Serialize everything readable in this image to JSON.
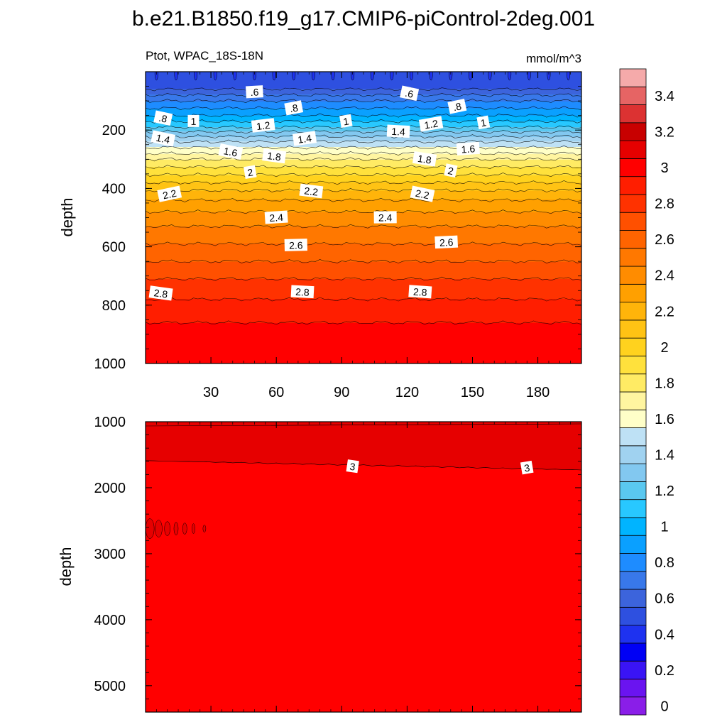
{
  "figure": {
    "title": "b.e21.B1850.f19_g17.CMIP6-piControl-2deg.001",
    "left_string": "Ptot, WPAC_18S-18N",
    "right_string": "mmol/m^3",
    "ylabel": "depth"
  },
  "chart_data": {
    "type": "heatmap",
    "variable": "Ptot",
    "region": "WPAC_18S-18N",
    "units": "mmol/m^3",
    "x_axis": {
      "range": [
        0,
        200
      ],
      "ticks": [
        30,
        60,
        90,
        120,
        150,
        180
      ],
      "tick_labels": [
        "30",
        "60",
        "90",
        "120",
        "150",
        "180"
      ]
    },
    "panels": [
      {
        "name": "upper",
        "ylabel": "depth",
        "ylim": [
          0,
          1000
        ],
        "y_inverted": true,
        "y_ticks": [
          200,
          400,
          600,
          800,
          1000
        ],
        "y_tick_labels": [
          "200",
          "400",
          "600",
          "800",
          "1000"
        ],
        "show_x_tick_labels": true,
        "profile_depth": [
          0,
          30,
          60,
          100,
          150,
          190,
          230,
          260,
          280,
          300,
          340,
          380,
          420,
          460,
          500,
          560,
          620,
          680,
          740,
          820,
          860,
          1000
        ],
        "profile_value": [
          0.5,
          0.55,
          0.6,
          0.8,
          1.0,
          1.2,
          1.45,
          1.6,
          1.7,
          1.8,
          1.95,
          2.1,
          2.25,
          2.35,
          2.45,
          2.55,
          2.65,
          2.75,
          2.85,
          2.95,
          3.0,
          3.05
        ],
        "contour_labels": [
          {
            "text": ".6",
            "x": 50,
            "depth": 70
          },
          {
            "text": ".6",
            "x": 121,
            "depth": 75
          },
          {
            "text": ".8",
            "x": 8,
            "depth": 160
          },
          {
            "text": ".8",
            "x": 68,
            "depth": 125
          },
          {
            "text": ".8",
            "x": 143,
            "depth": 120
          },
          {
            "text": "1",
            "x": 22,
            "depth": 170
          },
          {
            "text": "1",
            "x": 92,
            "depth": 170
          },
          {
            "text": "1",
            "x": 155,
            "depth": 175
          },
          {
            "text": "1.4",
            "x": 8,
            "depth": 230
          },
          {
            "text": "1.2",
            "x": 54,
            "depth": 185
          },
          {
            "text": "1.4",
            "x": 73,
            "depth": 230
          },
          {
            "text": "1.4",
            "x": 116,
            "depth": 205
          },
          {
            "text": "1.2",
            "x": 131,
            "depth": 180
          },
          {
            "text": "1.6",
            "x": 39,
            "depth": 275
          },
          {
            "text": "1.8",
            "x": 59,
            "depth": 290
          },
          {
            "text": "1.8",
            "x": 128,
            "depth": 300
          },
          {
            "text": "1.6",
            "x": 148,
            "depth": 265
          },
          {
            "text": "2",
            "x": 48,
            "depth": 345
          },
          {
            "text": "2",
            "x": 140,
            "depth": 340
          },
          {
            "text": "2.2",
            "x": 11,
            "depth": 420
          },
          {
            "text": "2.2",
            "x": 76,
            "depth": 410
          },
          {
            "text": "2.2",
            "x": 127,
            "depth": 420
          },
          {
            "text": "2.4",
            "x": 60,
            "depth": 500
          },
          {
            "text": "2.4",
            "x": 110,
            "depth": 500
          },
          {
            "text": "2.6",
            "x": 69,
            "depth": 595
          },
          {
            "text": "2.6",
            "x": 138,
            "depth": 585
          },
          {
            "text": "2.8",
            "x": 7,
            "depth": 760
          },
          {
            "text": "2.8",
            "x": 72,
            "depth": 755
          },
          {
            "text": "2.8",
            "x": 126,
            "depth": 755
          }
        ]
      },
      {
        "name": "lower",
        "ylabel": "depth",
        "ylim": [
          1000,
          5400
        ],
        "y_inverted": true,
        "y_ticks": [
          1000,
          2000,
          3000,
          4000,
          5000
        ],
        "y_tick_labels": [
          "1000",
          "2000",
          "3000",
          "4000",
          "5000"
        ],
        "show_x_tick_labels": false,
        "upper_band_value": 3.1,
        "deep_value": 3.05,
        "contour_3_depth_start": 1590,
        "contour_3_depth_end": 1730,
        "contour_labels": [
          {
            "text": "3",
            "x": 95,
            "depth": 1680
          },
          {
            "text": "3",
            "x": 175,
            "depth": 1700
          }
        ]
      }
    ],
    "colorbar": {
      "levels": [
        0,
        0.1,
        0.2,
        0.3,
        0.4,
        0.5,
        0.6,
        0.7,
        0.8,
        0.9,
        1.0,
        1.1,
        1.2,
        1.3,
        1.4,
        1.5,
        1.6,
        1.7,
        1.8,
        1.9,
        2.0,
        2.1,
        2.2,
        2.3,
        2.4,
        2.5,
        2.6,
        2.7,
        2.8,
        2.9,
        3.0,
        3.1,
        3.2,
        3.3,
        3.4,
        3.5
      ],
      "tick_labels": [
        "0",
        "0.2",
        "0.4",
        "0.6",
        "0.8",
        "1",
        "1.2",
        "1.4",
        "1.6",
        "1.8",
        "2",
        "2.2",
        "2.4",
        "2.6",
        "2.8",
        "3",
        "3.2",
        "3.4"
      ],
      "tick_values": [
        0,
        0.2,
        0.4,
        0.6,
        0.8,
        1.0,
        1.2,
        1.4,
        1.6,
        1.8,
        2.0,
        2.2,
        2.4,
        2.6,
        2.8,
        3.0,
        3.2,
        3.4
      ],
      "colors": [
        "#8a1ee8",
        "#6a14f0",
        "#3a14f5",
        "#0000f5",
        "#1e32f0",
        "#2e50e0",
        "#3c64dc",
        "#3878ea",
        "#1e8cff",
        "#0aa0ff",
        "#00b4ff",
        "#28c8ff",
        "#5ac8f0",
        "#82c8f0",
        "#a0d2f0",
        "#bee1f5",
        "#ffffc8",
        "#fff5a0",
        "#ffeb64",
        "#ffe13c",
        "#ffd21e",
        "#ffc314",
        "#ffb40a",
        "#ffa000",
        "#ff8c00",
        "#ff7800",
        "#ff6400",
        "#ff5000",
        "#ff3200",
        "#ff1e00",
        "#ff0000",
        "#e60000",
        "#c80000",
        "#dc3232",
        "#e66464",
        "#f5aaaa"
      ]
    }
  }
}
